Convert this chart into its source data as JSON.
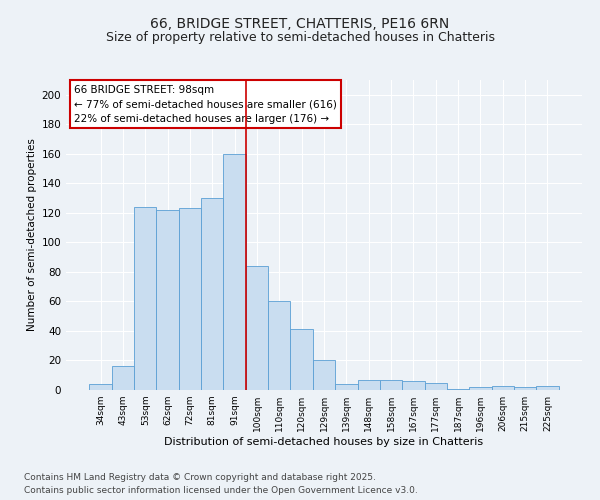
{
  "title_line1": "66, BRIDGE STREET, CHATTERIS, PE16 6RN",
  "title_line2": "Size of property relative to semi-detached houses in Chatteris",
  "xlabel": "Distribution of semi-detached houses by size in Chatteris",
  "ylabel": "Number of semi-detached properties",
  "categories": [
    "34sqm",
    "43sqm",
    "53sqm",
    "62sqm",
    "72sqm",
    "81sqm",
    "91sqm",
    "100sqm",
    "110sqm",
    "120sqm",
    "129sqm",
    "139sqm",
    "148sqm",
    "158sqm",
    "167sqm",
    "177sqm",
    "187sqm",
    "196sqm",
    "206sqm",
    "215sqm",
    "225sqm"
  ],
  "values": [
    4,
    16,
    124,
    122,
    123,
    130,
    160,
    84,
    60,
    41,
    20,
    4,
    7,
    7,
    6,
    5,
    1,
    2,
    3,
    2,
    3
  ],
  "bar_color": "#c9ddf0",
  "bar_edge_color": "#5a9fd4",
  "vline_color": "#cc0000",
  "annotation_title": "66 BRIDGE STREET: 98sqm",
  "annotation_line2": "← 77% of semi-detached houses are smaller (616)",
  "annotation_line3": "22% of semi-detached houses are larger (176) →",
  "annotation_box_color": "#cc0000",
  "ylim": [
    0,
    210
  ],
  "yticks": [
    0,
    20,
    40,
    60,
    80,
    100,
    120,
    140,
    160,
    180,
    200
  ],
  "footer_line1": "Contains HM Land Registry data © Crown copyright and database right 2025.",
  "footer_line2": "Contains public sector information licensed under the Open Government Licence v3.0.",
  "bg_color": "#edf2f7",
  "plot_bg_color": "#edf2f7",
  "grid_color": "#ffffff",
  "title_fontsize": 10,
  "subtitle_fontsize": 9,
  "footer_fontsize": 6.5,
  "annot_fontsize": 7.5
}
